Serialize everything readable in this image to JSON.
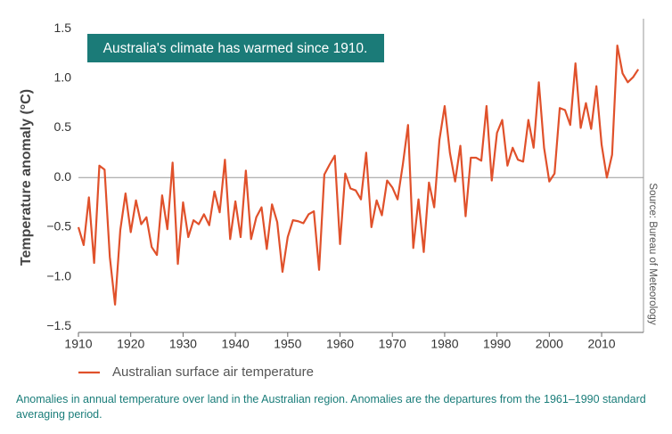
{
  "chart_data": {
    "type": "line",
    "title": "Australia's climate has warmed since 1910.",
    "y_label": "Temperature anomaly (°C)",
    "source": "Source: Bureau of Meteorology",
    "caption": "Anomalies in annual temperature over land in the Australian region. Anomalies are the departures from the 1961–1990 standard averaging period.",
    "x": [
      1910,
      1911,
      1912,
      1913,
      1914,
      1915,
      1916,
      1917,
      1918,
      1919,
      1920,
      1921,
      1922,
      1923,
      1924,
      1925,
      1926,
      1927,
      1928,
      1929,
      1930,
      1931,
      1932,
      1933,
      1934,
      1935,
      1936,
      1937,
      1938,
      1939,
      1940,
      1941,
      1942,
      1943,
      1944,
      1945,
      1946,
      1947,
      1948,
      1949,
      1950,
      1951,
      1952,
      1953,
      1954,
      1955,
      1956,
      1957,
      1958,
      1959,
      1960,
      1961,
      1962,
      1963,
      1964,
      1965,
      1966,
      1967,
      1968,
      1969,
      1970,
      1971,
      1972,
      1973,
      1974,
      1975,
      1976,
      1977,
      1978,
      1979,
      1980,
      1981,
      1982,
      1983,
      1984,
      1985,
      1986,
      1987,
      1988,
      1989,
      1990,
      1991,
      1992,
      1993,
      1994,
      1995,
      1996,
      1997,
      1998,
      1999,
      2000,
      2001,
      2002,
      2003,
      2004,
      2005,
      2006,
      2007,
      2008,
      2009,
      2010,
      2011,
      2012,
      2013,
      2014,
      2015,
      2016,
      2017
    ],
    "series": [
      {
        "name": "Australian surface air temperature",
        "color": "#e0512b",
        "values": [
          -0.5,
          -0.68,
          -0.2,
          -0.86,
          0.12,
          0.08,
          -0.8,
          -1.28,
          -0.53,
          -0.16,
          -0.55,
          -0.23,
          -0.47,
          -0.4,
          -0.7,
          -0.78,
          -0.18,
          -0.52,
          0.15,
          -0.87,
          -0.25,
          -0.6,
          -0.43,
          -0.47,
          -0.37,
          -0.48,
          -0.14,
          -0.35,
          0.18,
          -0.62,
          -0.24,
          -0.6,
          0.07,
          -0.62,
          -0.4,
          -0.3,
          -0.72,
          -0.27,
          -0.45,
          -0.95,
          -0.6,
          -0.43,
          -0.44,
          -0.46,
          -0.37,
          -0.34,
          -0.93,
          0.03,
          0.13,
          0.22,
          -0.67,
          0.04,
          -0.11,
          -0.13,
          -0.22,
          0.25,
          -0.5,
          -0.23,
          -0.38,
          -0.03,
          -0.1,
          -0.22,
          0.13,
          0.53,
          -0.71,
          -0.22,
          -0.75,
          -0.05,
          -0.3,
          0.38,
          0.72,
          0.25,
          -0.04,
          0.32,
          -0.39,
          0.2,
          0.2,
          0.17,
          0.72,
          -0.03,
          0.45,
          0.58,
          0.12,
          0.3,
          0.18,
          0.16,
          0.58,
          0.3,
          0.96,
          0.3,
          -0.04,
          0.04,
          0.7,
          0.68,
          0.53,
          1.15,
          0.5,
          0.75,
          0.49,
          0.92,
          0.33,
          0.0,
          0.23,
          1.33,
          1.05,
          0.96,
          1.01,
          1.09
        ]
      }
    ],
    "xlim": [
      1910,
      2018
    ],
    "xticks": [
      1910,
      1920,
      1930,
      1940,
      1950,
      1960,
      1970,
      1980,
      1990,
      2000,
      2010
    ],
    "ylim": [
      -1.56,
      1.6
    ],
    "yticks": [
      1.5,
      {
        "value": 1.0,
        "label": "1.0"
      },
      0.5,
      {
        "value": 0.0,
        "label": "0.0"
      },
      {
        "value": -0.5,
        "label": "−0.5"
      },
      {
        "value": -1.0,
        "label": "−1.0"
      },
      {
        "value": -1.5,
        "label": "−1.5"
      }
    ],
    "zero_line": true
  }
}
